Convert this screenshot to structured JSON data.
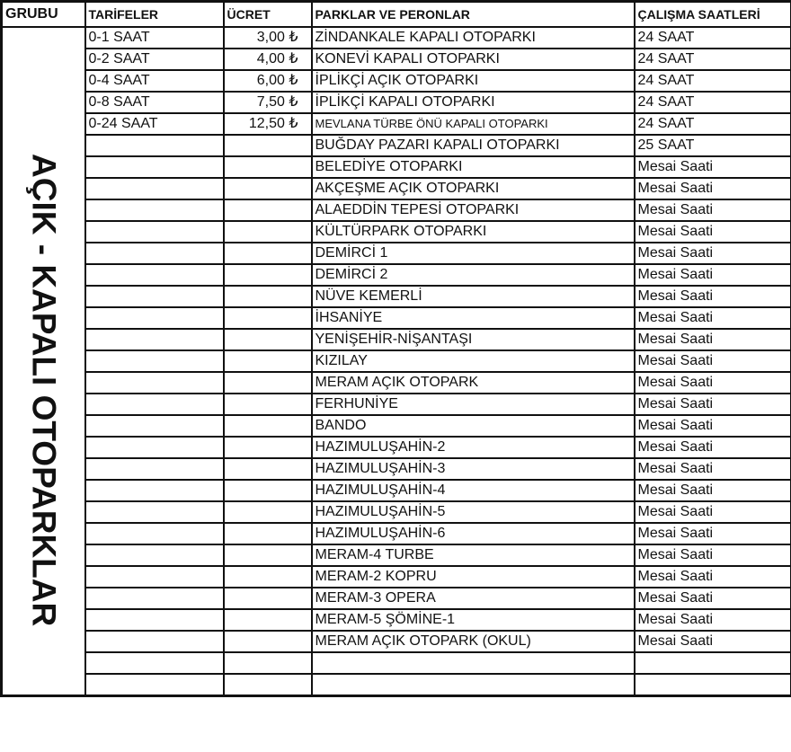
{
  "headers": {
    "group": "GRUBU",
    "tariffs": "TARİFELER",
    "fee": "ÜCRET",
    "parks": "PARKLAR VE PERONLAR",
    "hours": "ÇALIŞMA SAATLERİ"
  },
  "group_label": "AÇIK - KAPALI OTOPARKLAR",
  "rows": [
    {
      "tariff": "0-1 SAAT",
      "fee": "3,00 ₺",
      "park": "ZİNDANKALE KAPALI OTOPARKI",
      "hours": "24 SAAT"
    },
    {
      "tariff": "0-2 SAAT",
      "fee": "4,00 ₺",
      "park": "KONEVİ KAPALI OTOPARKI",
      "hours": "24 SAAT"
    },
    {
      "tariff": "0-4 SAAT",
      "fee": "6,00 ₺",
      "park": "İPLİKÇİ AÇIK OTOPARKI",
      "hours": "24 SAAT"
    },
    {
      "tariff": "0-8 SAAT",
      "fee": "7,50 ₺",
      "park": "İPLİKÇİ KAPALI OTOPARKI",
      "hours": "24 SAAT"
    },
    {
      "tariff": "0-24 SAAT",
      "fee": "12,50 ₺",
      "park": "MEVLANA TÜRBE ÖNÜ KAPALI OTOPARKI",
      "hours": "24 SAAT"
    },
    {
      "tariff": "",
      "fee": "",
      "park": "BUĞDAY PAZARI KAPALI OTOPARKI",
      "hours": "25 SAAT"
    },
    {
      "tariff": "",
      "fee": "",
      "park": "BELEDİYE OTOPARKI",
      "hours": "Mesai Saati"
    },
    {
      "tariff": "",
      "fee": "",
      "park": "AKÇEŞME AÇIK OTOPARKI",
      "hours": "Mesai Saati"
    },
    {
      "tariff": "",
      "fee": "",
      "park": "ALAEDDİN TEPESİ OTOPARKI",
      "hours": "Mesai Saati"
    },
    {
      "tariff": "",
      "fee": "",
      "park": "KÜLTÜRPARK OTOPARKI",
      "hours": "Mesai Saati"
    },
    {
      "tariff": "",
      "fee": "",
      "park": "DEMİRCİ 1",
      "hours": "Mesai Saati"
    },
    {
      "tariff": "",
      "fee": "",
      "park": "DEMİRCİ 2",
      "hours": "Mesai Saati"
    },
    {
      "tariff": "",
      "fee": "",
      "park": "NÜVE KEMERLİ",
      "hours": "Mesai Saati"
    },
    {
      "tariff": "",
      "fee": "",
      "park": "İHSANİYE",
      "hours": "Mesai Saati"
    },
    {
      "tariff": "",
      "fee": "",
      "park": "YENİŞEHİR-NİŞANTAŞI",
      "hours": "Mesai Saati"
    },
    {
      "tariff": "",
      "fee": "",
      "park": "KIZILAY",
      "hours": "Mesai Saati"
    },
    {
      "tariff": "",
      "fee": "",
      "park": "MERAM AÇIK OTOPARK",
      "hours": "Mesai Saati"
    },
    {
      "tariff": "",
      "fee": "",
      "park": "FERHUNİYE",
      "hours": "Mesai Saati"
    },
    {
      "tariff": "",
      "fee": "",
      "park": "BANDO",
      "hours": "Mesai Saati"
    },
    {
      "tariff": "",
      "fee": "",
      "park": "HAZIMULUŞAHİN-2",
      "hours": "Mesai Saati"
    },
    {
      "tariff": "",
      "fee": "",
      "park": "HAZIMULUŞAHİN-3",
      "hours": "Mesai Saati"
    },
    {
      "tariff": "",
      "fee": "",
      "park": "HAZIMULUŞAHİN-4",
      "hours": "Mesai Saati"
    },
    {
      "tariff": "",
      "fee": "",
      "park": "HAZIMULUŞAHİN-5",
      "hours": "Mesai Saati"
    },
    {
      "tariff": "",
      "fee": "",
      "park": "HAZIMULUŞAHİN-6",
      "hours": "Mesai Saati"
    },
    {
      "tariff": "",
      "fee": "",
      "park": "MERAM-4 TURBE",
      "hours": "Mesai Saati"
    },
    {
      "tariff": "",
      "fee": "",
      "park": "MERAM-2 KOPRU",
      "hours": "Mesai Saati"
    },
    {
      "tariff": "",
      "fee": "",
      "park": "MERAM-3 OPERA",
      "hours": "Mesai Saati"
    },
    {
      "tariff": "",
      "fee": "",
      "park": "MERAM-5 ŞÖMİNE-1",
      "hours": "Mesai Saati"
    },
    {
      "tariff": "",
      "fee": "",
      "park": "MERAM AÇIK OTOPARK (OKUL)",
      "hours": "Mesai Saati"
    },
    {
      "tariff": "",
      "fee": "",
      "park": "",
      "hours": ""
    },
    {
      "tariff": "",
      "fee": "",
      "park": "",
      "hours": ""
    }
  ]
}
